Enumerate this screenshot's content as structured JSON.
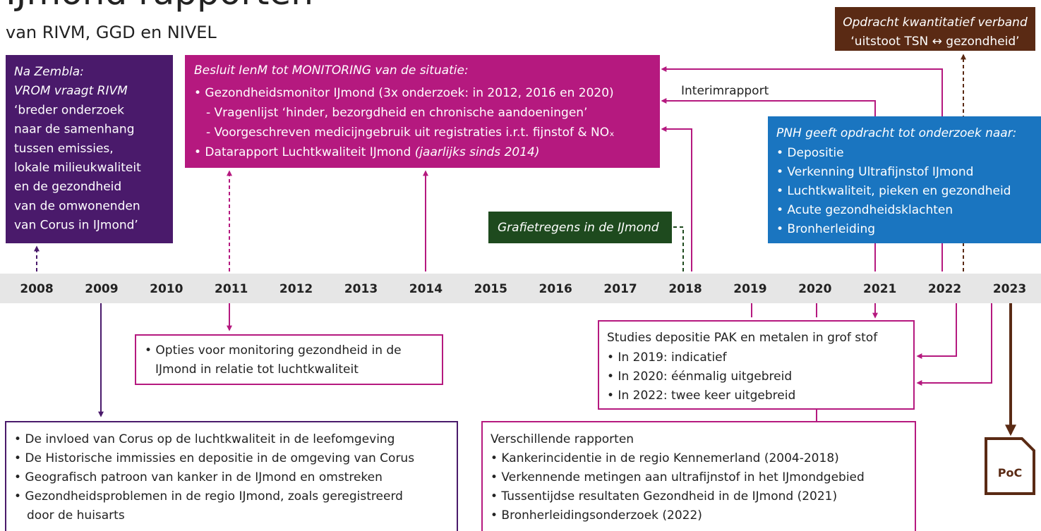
{
  "title": "IJmond rapporten",
  "subtitle": "van RIVM, GGD en NIVEL",
  "timeline": {
    "years": [
      "2008",
      "2009",
      "2010",
      "2011",
      "2012",
      "2013",
      "2014",
      "2015",
      "2016",
      "2017",
      "2018",
      "2019",
      "2020",
      "2021",
      "2022",
      "2023"
    ]
  },
  "zembla": {
    "lines": [
      "Na Zembla:",
      "VROM vraagt RIVM",
      "‘breder onderzoek",
      "naar de samenhang",
      "tussen emissies,",
      "lokale milieukwaliteit",
      "en de gezondheid",
      "van de omwonenden",
      "van Corus in IJmond’"
    ]
  },
  "monitoring": {
    "heading": "Besluit IenM tot MONITORING van de situatie:",
    "items": [
      "• Gezondheidsmonitor IJmond (3x onderzoek: in 2012, 2016 en 2020)",
      "- Vragenlijst ‘hinder, bezorgdheid en chronische aandoeningen’",
      "- Voorgeschreven medicijngebruik uit registraties i.r.t. fijnstof & NOₓ",
      "• Datarapport Luchtkwaliteit IJmond "
    ],
    "note": "(jaarlijks sinds 2014)"
  },
  "interim": "Interimrapport",
  "grafiet": "Grafietregens in de IJmond",
  "pnh": {
    "heading": "PNH geeft opdracht tot onderzoek naar:",
    "items": [
      "• Depositie",
      "• Verkenning Ultrafijnstof IJmond",
      "• Luchtkwaliteit, pieken en gezondheid",
      "• Acute gezondheidsklachten",
      "• Bronherleiding"
    ]
  },
  "opdracht": {
    "lines": [
      "Opdracht kwantitatief verband",
      "‘uitstoot TSN ↔ gezondheid’"
    ]
  },
  "opties": {
    "lines": [
      "• Opties voor monitoring gezondheid in de",
      "IJmond in relatie tot luchtkwaliteit"
    ]
  },
  "studies": {
    "heading": "Studies depositie PAK en metalen in grof stof",
    "items": [
      "• In 2019: indicatief",
      "• In 2020: éénmalig uitgebreid",
      "• In 2022: twee keer uitgebreid"
    ]
  },
  "corus": {
    "items": [
      "• De invloed van Corus op de luchtkwaliteit in de leefomgeving",
      "• De Historische immissies en depositie in de omgeving van Corus",
      "• Geografisch patroon van kanker in de IJmond en omstreken",
      "• Gezondheidsproblemen in de regio IJmond, zoals geregistreerd",
      "door de huisarts"
    ]
  },
  "rapporten": {
    "heading": "Verschillende rapporten",
    "items": [
      "• Kankerincidentie in de regio Kennemerland (2004-2018)",
      "• Verkennende metingen aan ultrafijnstof in het IJmondgebied",
      "• Tussentijdse resultaten Gezondheid in de IJmond (2021)",
      "• Bronherleidingsonderzoek (2022)"
    ]
  },
  "icon": "PoC"
}
